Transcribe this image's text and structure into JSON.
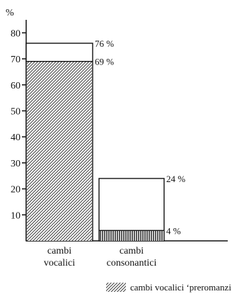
{
  "chart_data": {
    "type": "bar",
    "y_unit_label": "%",
    "ylim": [
      0,
      85
    ],
    "yticks": [
      10,
      20,
      30,
      40,
      50,
      60,
      70,
      80
    ],
    "categories": [
      {
        "line1": "cambi",
        "line2": "vocalici"
      },
      {
        "line1": "cambi",
        "line2": "consonantici"
      }
    ],
    "series": [
      {
        "values": [
          76,
          24
        ],
        "labels": [
          "76 %",
          "24 %"
        ]
      },
      {
        "values": [
          69,
          4
        ],
        "labels": [
          "69 %",
          "4 %"
        ]
      }
    ],
    "legend": {
      "label": "cambi vocalici ‘preromanzi’",
      "position": "bottom-right"
    },
    "grid": false
  }
}
